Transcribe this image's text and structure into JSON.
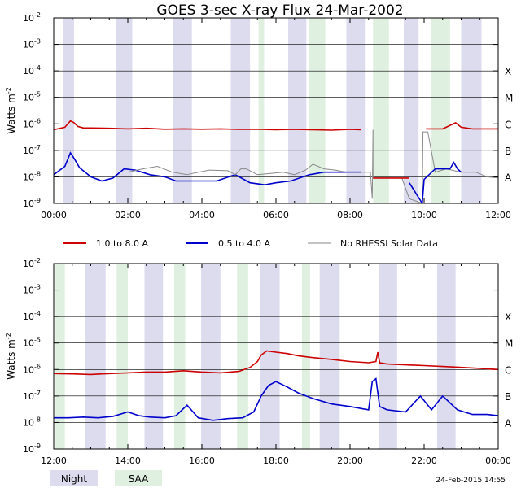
{
  "chart_data": [
    {
      "type": "line",
      "title": "GOES 3-sec X-ray Flux   24-Mar-2002",
      "ylabel": "Watts m-2",
      "yscale": "log",
      "ylim": [
        1e-09,
        0.01
      ],
      "ytick_exponents": [
        -9,
        -8,
        -7,
        -6,
        -5,
        -4,
        -3,
        -2
      ],
      "xlim_hours": [
        0,
        12
      ],
      "xticks": [
        "00:00",
        "02:00",
        "04:00",
        "06:00",
        "08:00",
        "10:00",
        "12:00"
      ],
      "flare_classes": [
        "A",
        "B",
        "C",
        "M",
        "X"
      ],
      "night_intervals": [
        [
          0.25,
          0.55
        ],
        [
          1.67,
          2.12
        ],
        [
          3.23,
          3.73
        ],
        [
          4.78,
          5.3
        ],
        [
          6.33,
          6.82
        ],
        [
          7.9,
          8.4
        ],
        [
          9.45,
          9.85
        ],
        [
          11.0,
          11.55
        ]
      ],
      "saa_intervals": [
        [
          5.53,
          5.68
        ],
        [
          6.9,
          7.33
        ],
        [
          8.62,
          9.05
        ],
        [
          10.18,
          10.7
        ]
      ],
      "series": [
        {
          "name": "1.0 to 8.0 A",
          "color": "#cc0000",
          "x": [
            0,
            0.3,
            0.45,
            0.55,
            0.65,
            0.8,
            1.0,
            1.5,
            2.0,
            2.5,
            3.0,
            3.5,
            4.0,
            4.5,
            5.0,
            5.5,
            6.0,
            6.5,
            7.0,
            7.5,
            8.0,
            8.3
          ],
          "y": [
            6e-07,
            7.5e-07,
            1.3e-06,
            1.1e-06,
            8e-07,
            7e-07,
            7e-07,
            6.8e-07,
            6.5e-07,
            6.8e-07,
            6.3e-07,
            6.5e-07,
            6.3e-07,
            6.5e-07,
            6.2e-07,
            6.3e-07,
            6e-07,
            6.2e-07,
            6e-07,
            5.8e-07,
            6.2e-07,
            6e-07
          ]
        },
        {
          "name": "0.5 to 4.0 A",
          "color": "#0000cc",
          "x": [
            0,
            0.3,
            0.45,
            0.55,
            0.7,
            0.85,
            1.0,
            1.3,
            1.6,
            1.9,
            2.2,
            2.6,
            3.0,
            3.3,
            3.7,
            4.0,
            4.4,
            4.9,
            5.3,
            5.7,
            6.0,
            6.4,
            6.9,
            7.3,
            7.8,
            8.3
          ],
          "y": [
            1.2e-08,
            2.5e-08,
            8e-08,
            5e-08,
            2.2e-08,
            1.5e-08,
            1e-08,
            7e-09,
            9e-09,
            2e-08,
            1.8e-08,
            1.2e-08,
            1e-08,
            7e-09,
            7e-09,
            7e-09,
            7e-09,
            1.2e-08,
            6e-09,
            5e-09,
            6e-09,
            7e-09,
            1.2e-08,
            1.5e-08,
            1.5e-08,
            1.5e-08
          ]
        },
        {
          "name": "No RHESSI Solar Data",
          "color": "#888888",
          "x": [
            2.0,
            2.4,
            2.8,
            3.2,
            3.6,
            3.8,
            4.2,
            4.7,
            4.9,
            5.05,
            5.2,
            5.5,
            6.2,
            6.5,
            6.8,
            7.0,
            7.3,
            7.6,
            7.9,
            8.0,
            8.55,
            8.6,
            8.62,
            8.62,
            9.0,
            9.4,
            9.6,
            9.95,
            9.97,
            10.1,
            10.3,
            10.6,
            11.0,
            11.4,
            11.7,
            12.0
          ],
          "y": [
            1.5e-08,
            2e-08,
            2.5e-08,
            1.5e-08,
            1.2e-08,
            1.4e-08,
            1.8e-08,
            1.7e-08,
            1.2e-08,
            2e-08,
            2e-08,
            1.2e-08,
            1.5e-08,
            1.2e-08,
            1.8e-08,
            3e-08,
            2e-08,
            1.8e-08,
            1.5e-08,
            1.5e-08,
            1.5e-08,
            1.5e-09,
            6e-07,
            9e-09,
            9e-09,
            9e-09,
            1.5e-09,
            1e-09,
            5e-07,
            5e-07,
            1.5e-08,
            2e-08,
            1.5e-08,
            1.5e-08,
            1e-08,
            9e-09
          ]
        },
        {
          "name": "1.0 to 8.0 A (flat)",
          "color": "#cc0000",
          "x": [
            8.62,
            9.6
          ],
          "y": [
            9e-09,
            9e-09
          ]
        },
        {
          "name": "1.0 to 8.0 A (late)",
          "color": "#cc0000",
          "x": [
            10.05,
            10.5,
            10.85,
            11.0,
            11.3,
            12.0
          ],
          "y": [
            6.5e-07,
            6.5e-07,
            1.1e-06,
            7.5e-07,
            6.5e-07,
            6.5e-07
          ]
        },
        {
          "name": "0.5 to 4.0 A (late)",
          "color": "#0000cc",
          "x": [
            9.6,
            9.95,
            10.0,
            10.3,
            10.7,
            10.8,
            10.9,
            11.0
          ],
          "y": [
            6e-09,
            1e-09,
            8e-09,
            2e-08,
            2e-08,
            3.5e-08,
            2e-08,
            1.5e-08
          ]
        }
      ]
    },
    {
      "type": "line",
      "ylabel": "Watts m-2",
      "yscale": "log",
      "ylim": [
        1e-09,
        0.01
      ],
      "ytick_exponents": [
        -9,
        -8,
        -7,
        -6,
        -5,
        -4,
        -3,
        -2
      ],
      "xlim_hours": [
        12,
        24
      ],
      "xticks": [
        "12:00",
        "14:00",
        "16:00",
        "18:00",
        "20:00",
        "22:00",
        "00:00"
      ],
      "flare_classes": [
        "A",
        "B",
        "C",
        "M",
        "X"
      ],
      "night_intervals": [
        [
          12.85,
          13.4
        ],
        [
          14.45,
          14.95
        ],
        [
          15.98,
          16.5
        ],
        [
          17.58,
          18.1
        ],
        [
          19.18,
          19.72
        ],
        [
          20.77,
          21.27
        ],
        [
          22.35,
          22.85
        ]
      ],
      "saa_intervals": [
        [
          12.05,
          12.3
        ],
        [
          13.7,
          14.0
        ],
        [
          15.25,
          15.55
        ],
        [
          16.95,
          17.25
        ],
        [
          18.7,
          18.92
        ]
      ],
      "series": [
        {
          "name": "1.0 to 8.0 A",
          "color": "#cc0000",
          "x": [
            12.0,
            12.5,
            13.0,
            13.5,
            14.0,
            14.5,
            15.0,
            15.5,
            16.0,
            16.5,
            17.0,
            17.3,
            17.5,
            17.6,
            17.75,
            18.0,
            18.3,
            18.6,
            19.0,
            19.5,
            20.0,
            20.5,
            20.7,
            20.75,
            20.8,
            21.0,
            21.5,
            22.0,
            22.5,
            23.0,
            23.5,
            24.0
          ],
          "y": [
            7e-07,
            6.8e-07,
            6.5e-07,
            7e-07,
            7.5e-07,
            8e-07,
            8e-07,
            9e-07,
            8e-07,
            7.5e-07,
            8.5e-07,
            1.2e-06,
            2e-06,
            3.5e-06,
            5e-06,
            4.5e-06,
            4e-06,
            3.3e-06,
            2.8e-06,
            2.4e-06,
            2e-06,
            1.8e-06,
            2e-06,
            4.5e-06,
            1.8e-06,
            1.6e-06,
            1.5e-06,
            1.4e-06,
            1.3e-06,
            1.2e-06,
            1.1e-06,
            1e-06
          ]
        },
        {
          "name": "0.5 to 4.0 A",
          "color": "#0000cc",
          "x": [
            12.0,
            12.4,
            12.8,
            13.2,
            13.6,
            14.0,
            14.3,
            14.6,
            15.0,
            15.3,
            15.6,
            15.9,
            16.3,
            16.7,
            17.1,
            17.4,
            17.6,
            17.8,
            18.0,
            18.3,
            18.6,
            19.0,
            19.5,
            20.0,
            20.5,
            20.6,
            20.7,
            20.8,
            21.0,
            21.5,
            21.9,
            22.2,
            22.5,
            22.9,
            23.3,
            23.7,
            24.0
          ],
          "y": [
            1.5e-08,
            1.5e-08,
            1.6e-08,
            1.5e-08,
            1.7e-08,
            2.5e-08,
            1.8e-08,
            1.6e-08,
            1.5e-08,
            1.8e-08,
            4.5e-08,
            1.5e-08,
            1.2e-08,
            1.4e-08,
            1.5e-08,
            2.5e-08,
            1e-07,
            2.5e-07,
            3.5e-07,
            2.2e-07,
            1.3e-07,
            8e-08,
            5e-08,
            4e-08,
            3e-08,
            3.5e-07,
            4.5e-07,
            4e-08,
            3e-08,
            2.5e-08,
            1e-07,
            3e-08,
            1e-07,
            3e-08,
            2e-08,
            2e-08,
            1.8e-08
          ]
        }
      ]
    }
  ],
  "legend": [
    {
      "label": "1.0 to 8.0 A",
      "color": "#cc0000"
    },
    {
      "label": "0.5 to 4.0 A",
      "color": "#0000cc"
    },
    {
      "label": "No RHESSI Solar Data",
      "color": "#888888"
    }
  ],
  "night_label": "Night",
  "saa_label": "SAA",
  "night_color": "#dcdcee",
  "saa_color": "#dff0e0",
  "timestamp": "24-Feb-2015 14:55"
}
